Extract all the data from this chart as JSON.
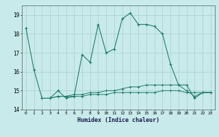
{
  "xlabel": "Humidex (Indice chaleur)",
  "x": [
    0,
    1,
    2,
    3,
    4,
    5,
    6,
    7,
    8,
    9,
    10,
    11,
    12,
    13,
    14,
    15,
    16,
    17,
    18,
    19,
    20,
    21,
    22,
    23
  ],
  "line1": [
    18.3,
    16.1,
    14.6,
    14.6,
    15.0,
    14.6,
    14.7,
    16.9,
    16.5,
    18.5,
    17.0,
    17.2,
    18.8,
    19.1,
    18.5,
    18.5,
    18.4,
    18.0,
    16.4,
    15.3,
    15.3,
    14.6,
    14.9,
    14.9
  ],
  "line2": [
    null,
    null,
    14.6,
    14.6,
    14.7,
    14.7,
    14.7,
    14.7,
    14.8,
    14.8,
    14.8,
    14.9,
    14.9,
    14.9,
    14.9,
    14.9,
    14.9,
    15.0,
    15.0,
    15.0,
    14.9,
    14.9,
    14.9,
    14.9
  ],
  "line3": [
    null,
    null,
    14.6,
    14.6,
    14.7,
    14.7,
    14.8,
    14.8,
    14.9,
    14.9,
    15.0,
    15.0,
    15.1,
    15.2,
    15.2,
    15.3,
    15.3,
    15.3,
    15.3,
    15.3,
    15.0,
    14.7,
    14.9,
    14.9
  ],
  "line_color": "#1e7b6a",
  "bg_color": "#c8eaea",
  "grid_color": "#a8cece",
  "ylim": [
    14.0,
    19.5
  ],
  "yticks": [
    14,
    15,
    16,
    17,
    18,
    19
  ],
  "xlim": [
    -0.5,
    23.5
  ],
  "xticks": [
    0,
    1,
    2,
    3,
    4,
    5,
    6,
    7,
    8,
    9,
    10,
    11,
    12,
    13,
    14,
    15,
    16,
    17,
    18,
    19,
    20,
    21,
    22,
    23
  ]
}
